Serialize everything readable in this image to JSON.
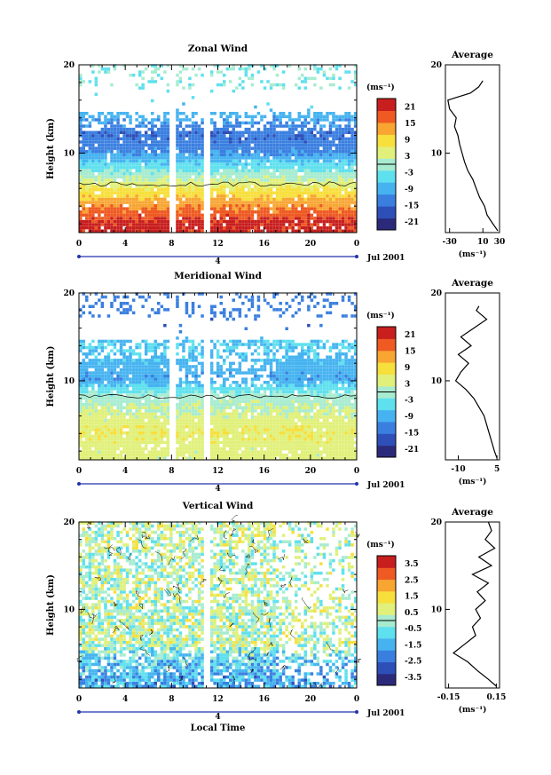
{
  "colors": {
    "colormap": [
      "#2b2a7a",
      "#2f4fb8",
      "#3a7fe0",
      "#46b3f0",
      "#5fe0ee",
      "#a8ecd0",
      "#e0f07a",
      "#f7df3c",
      "#f8a532",
      "#ee5a22",
      "#c81e1e"
    ],
    "missing": "#ffffff",
    "axis": "#000000"
  },
  "chart_data": [
    {
      "type": "heatmap",
      "title": "Zonal Wind",
      "ylabel": "Height (km)",
      "x_ticks": [
        "0",
        "4",
        "8",
        "12",
        "16",
        "20",
        "0"
      ],
      "x_range": [
        0,
        24
      ],
      "y_ticks": [
        "10",
        "20"
      ],
      "y_range": [
        1,
        20
      ],
      "date_label": "Jul 2001",
      "day_label": "4",
      "colorbar": {
        "unit": "(ms⁻¹)",
        "ticks": [
          "21",
          "15",
          "9",
          "3",
          "-3",
          "-9",
          "-15",
          "-21"
        ],
        "range": [
          -24,
          24
        ]
      },
      "data_gaps_hours": [
        [
          7.8,
          8.3
        ],
        [
          10.6,
          11.2
        ]
      ],
      "wind_profile": [
        {
          "h": 2,
          "v": 21
        },
        {
          "h": 4,
          "v": 14
        },
        {
          "h": 6,
          "v": 6
        },
        {
          "h": 8,
          "v": -3
        },
        {
          "h": 10,
          "v": -12
        },
        {
          "h": 12,
          "v": -15
        },
        {
          "h": 14,
          "v": -9
        },
        {
          "h": 16,
          "v": -4
        },
        {
          "h": 18,
          "v": -2
        }
      ],
      "average": {
        "title": "Average",
        "unit": "(ms⁻¹)",
        "x_ticks": [
          "-30",
          "10",
          "30"
        ],
        "x_range": [
          -35,
          30
        ],
        "y_ticks": [
          "10",
          "20"
        ],
        "profile": [
          {
            "h": 1.2,
            "v": 28
          },
          {
            "h": 2,
            "v": 22
          },
          {
            "h": 3,
            "v": 15
          },
          {
            "h": 4,
            "v": 12
          },
          {
            "h": 5,
            "v": 6
          },
          {
            "h": 6,
            "v": 2
          },
          {
            "h": 7,
            "v": -2
          },
          {
            "h": 8,
            "v": -8
          },
          {
            "h": 9,
            "v": -12
          },
          {
            "h": 10,
            "v": -15
          },
          {
            "h": 11,
            "v": -18
          },
          {
            "h": 12,
            "v": -20
          },
          {
            "h": 13,
            "v": -24
          },
          {
            "h": 14,
            "v": -22
          },
          {
            "h": 15,
            "v": -30
          },
          {
            "h": 16,
            "v": -32
          },
          {
            "h": 16.8,
            "v": -5
          },
          {
            "h": 17.5,
            "v": 5
          },
          {
            "h": 18.2,
            "v": 10
          }
        ]
      }
    },
    {
      "type": "heatmap",
      "title": "Meridional Wind",
      "ylabel": "Height (km)",
      "x_ticks": [
        "0",
        "4",
        "8",
        "12",
        "16",
        "20",
        "0"
      ],
      "x_range": [
        0,
        24
      ],
      "y_ticks": [
        "10",
        "20"
      ],
      "y_range": [
        1,
        20
      ],
      "date_label": "Jul 2001",
      "day_label": "4",
      "colorbar": {
        "unit": "(ms⁻¹)",
        "ticks": [
          "21",
          "15",
          "9",
          "3",
          "-3",
          "-9",
          "-15",
          "-21"
        ],
        "range": [
          -24,
          24
        ]
      },
      "data_gaps_hours": [
        [
          7.8,
          8.3
        ],
        [
          10.6,
          11.2
        ]
      ],
      "wind_profile": [
        {
          "h": 2,
          "v": 4
        },
        {
          "h": 4,
          "v": 6
        },
        {
          "h": 6,
          "v": 3
        },
        {
          "h": 8,
          "v": 0
        },
        {
          "h": 10,
          "v": -10
        },
        {
          "h": 12,
          "v": -8
        },
        {
          "h": 14,
          "v": -6
        },
        {
          "h": 16,
          "v": -14
        },
        {
          "h": 18,
          "v": -13
        }
      ],
      "average": {
        "title": "Average",
        "unit": "(ms⁻¹)",
        "x_ticks": [
          "-10",
          "5"
        ],
        "x_range": [
          -15,
          6
        ],
        "y_ticks": [
          "10",
          "20"
        ],
        "profile": [
          {
            "h": 1.2,
            "v": 5
          },
          {
            "h": 2,
            "v": 4
          },
          {
            "h": 3,
            "v": 3
          },
          {
            "h": 4,
            "v": 2
          },
          {
            "h": 5,
            "v": 1
          },
          {
            "h": 6,
            "v": 0
          },
          {
            "h": 7,
            "v": -2
          },
          {
            "h": 8,
            "v": -4
          },
          {
            "h": 9,
            "v": -7
          },
          {
            "h": 10,
            "v": -11
          },
          {
            "h": 11,
            "v": -9
          },
          {
            "h": 12,
            "v": -6
          },
          {
            "h": 13,
            "v": -10
          },
          {
            "h": 14,
            "v": -5
          },
          {
            "h": 15,
            "v": -9
          },
          {
            "h": 16,
            "v": -4
          },
          {
            "h": 17,
            "v": 1
          },
          {
            "h": 18,
            "v": -3
          },
          {
            "h": 18.5,
            "v": -2
          }
        ]
      }
    },
    {
      "type": "heatmap",
      "title": "Vertical Wind",
      "xlabel": "Local Time",
      "ylabel": "Height (km)",
      "x_ticks": [
        "0",
        "4",
        "8",
        "12",
        "16",
        "20",
        "0"
      ],
      "x_range": [
        0,
        24
      ],
      "y_ticks": [
        "10",
        "20"
      ],
      "y_range": [
        1,
        20
      ],
      "date_label": "Jul 2001",
      "day_label": "4",
      "colorbar": {
        "unit": "(ms⁻¹)",
        "ticks": [
          "3.5",
          "2.5",
          "1.5",
          "0.5",
          "-0.5",
          "-1.5",
          "-2.5",
          "-3.5"
        ],
        "range": [
          -4,
          4
        ]
      },
      "data_gaps_hours": [
        [
          10.6,
          11.2
        ]
      ],
      "wind_profile": [
        {
          "h": 2,
          "v": -1.5
        },
        {
          "h": 4,
          "v": -1
        },
        {
          "h": 6,
          "v": 0.3
        },
        {
          "h": 8,
          "v": 0.2
        },
        {
          "h": 10,
          "v": 0.1
        },
        {
          "h": 12,
          "v": 0.3
        },
        {
          "h": 14,
          "v": 0.2
        },
        {
          "h": 16,
          "v": 0.1
        },
        {
          "h": 18,
          "v": 0.4
        }
      ],
      "average": {
        "title": "Average",
        "unit": "(ms⁻¹)",
        "x_ticks": [
          "-0.15",
          "0.15"
        ],
        "x_range": [
          -0.17,
          0.17
        ],
        "y_ticks": [
          "10",
          "20"
        ],
        "profile": [
          {
            "h": 1.2,
            "v": 0.15
          },
          {
            "h": 2,
            "v": 0.1
          },
          {
            "h": 3,
            "v": 0.03
          },
          {
            "h": 4,
            "v": -0.03
          },
          {
            "h": 5,
            "v": -0.12
          },
          {
            "h": 6,
            "v": -0.05
          },
          {
            "h": 7,
            "v": 0.02
          },
          {
            "h": 8,
            "v": 0.0
          },
          {
            "h": 9,
            "v": 0.05
          },
          {
            "h": 10,
            "v": 0.02
          },
          {
            "h": 11,
            "v": 0.08
          },
          {
            "h": 12,
            "v": 0.03
          },
          {
            "h": 13,
            "v": 0.1
          },
          {
            "h": 14,
            "v": 0.0
          },
          {
            "h": 15,
            "v": 0.12
          },
          {
            "h": 16,
            "v": 0.04
          },
          {
            "h": 17,
            "v": 0.14
          },
          {
            "h": 18,
            "v": 0.08
          },
          {
            "h": 19,
            "v": 0.12
          },
          {
            "h": 20,
            "v": 0.1
          }
        ]
      }
    }
  ]
}
